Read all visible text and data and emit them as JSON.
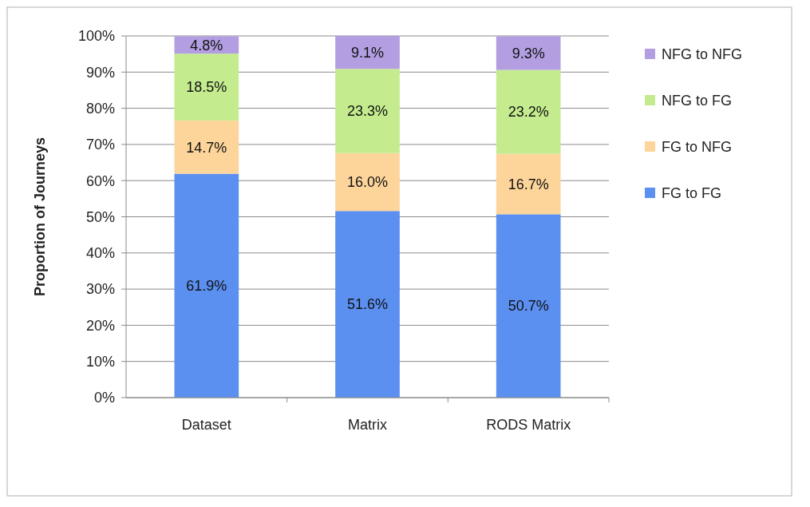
{
  "chart_data": {
    "type": "bar",
    "stacked": true,
    "ylabel": "Proportion of Journeys",
    "categories": [
      "Dataset",
      "Matrix",
      "RODS Matrix"
    ],
    "series": [
      {
        "name": "FG to FG",
        "color": "#5b8ff0",
        "values": [
          61.9,
          51.6,
          50.7
        ],
        "value_labels": [
          "61.9%",
          "51.6%",
          "50.7%"
        ]
      },
      {
        "name": "FG to NFG",
        "color": "#fdd59b",
        "values": [
          14.7,
          16.0,
          16.7
        ],
        "value_labels": [
          "14.7%",
          "16.0%",
          "16.7%"
        ]
      },
      {
        "name": "NFG to FG",
        "color": "#c4ec8e",
        "values": [
          18.5,
          23.3,
          23.2
        ],
        "value_labels": [
          "18.5%",
          "23.3%",
          "23.2%"
        ]
      },
      {
        "name": "NFG to NFG",
        "color": "#b39ee2",
        "values": [
          4.8,
          9.1,
          9.3
        ],
        "value_labels": [
          "4.8%",
          "9.1%",
          "9.3%"
        ]
      }
    ],
    "ylim": [
      0,
      100
    ],
    "yticks": [
      {
        "value": 0,
        "label": "0%"
      },
      {
        "value": 10,
        "label": "10%"
      },
      {
        "value": 20,
        "label": "20%"
      },
      {
        "value": 30,
        "label": "30%"
      },
      {
        "value": 40,
        "label": "40%"
      },
      {
        "value": 50,
        "label": "50%"
      },
      {
        "value": 60,
        "label": "60%"
      },
      {
        "value": 70,
        "label": "70%"
      },
      {
        "value": 80,
        "label": "80%"
      },
      {
        "value": 90,
        "label": "90%"
      },
      {
        "value": 100,
        "label": "100%"
      }
    ],
    "grid": "y",
    "legend": "right"
  }
}
